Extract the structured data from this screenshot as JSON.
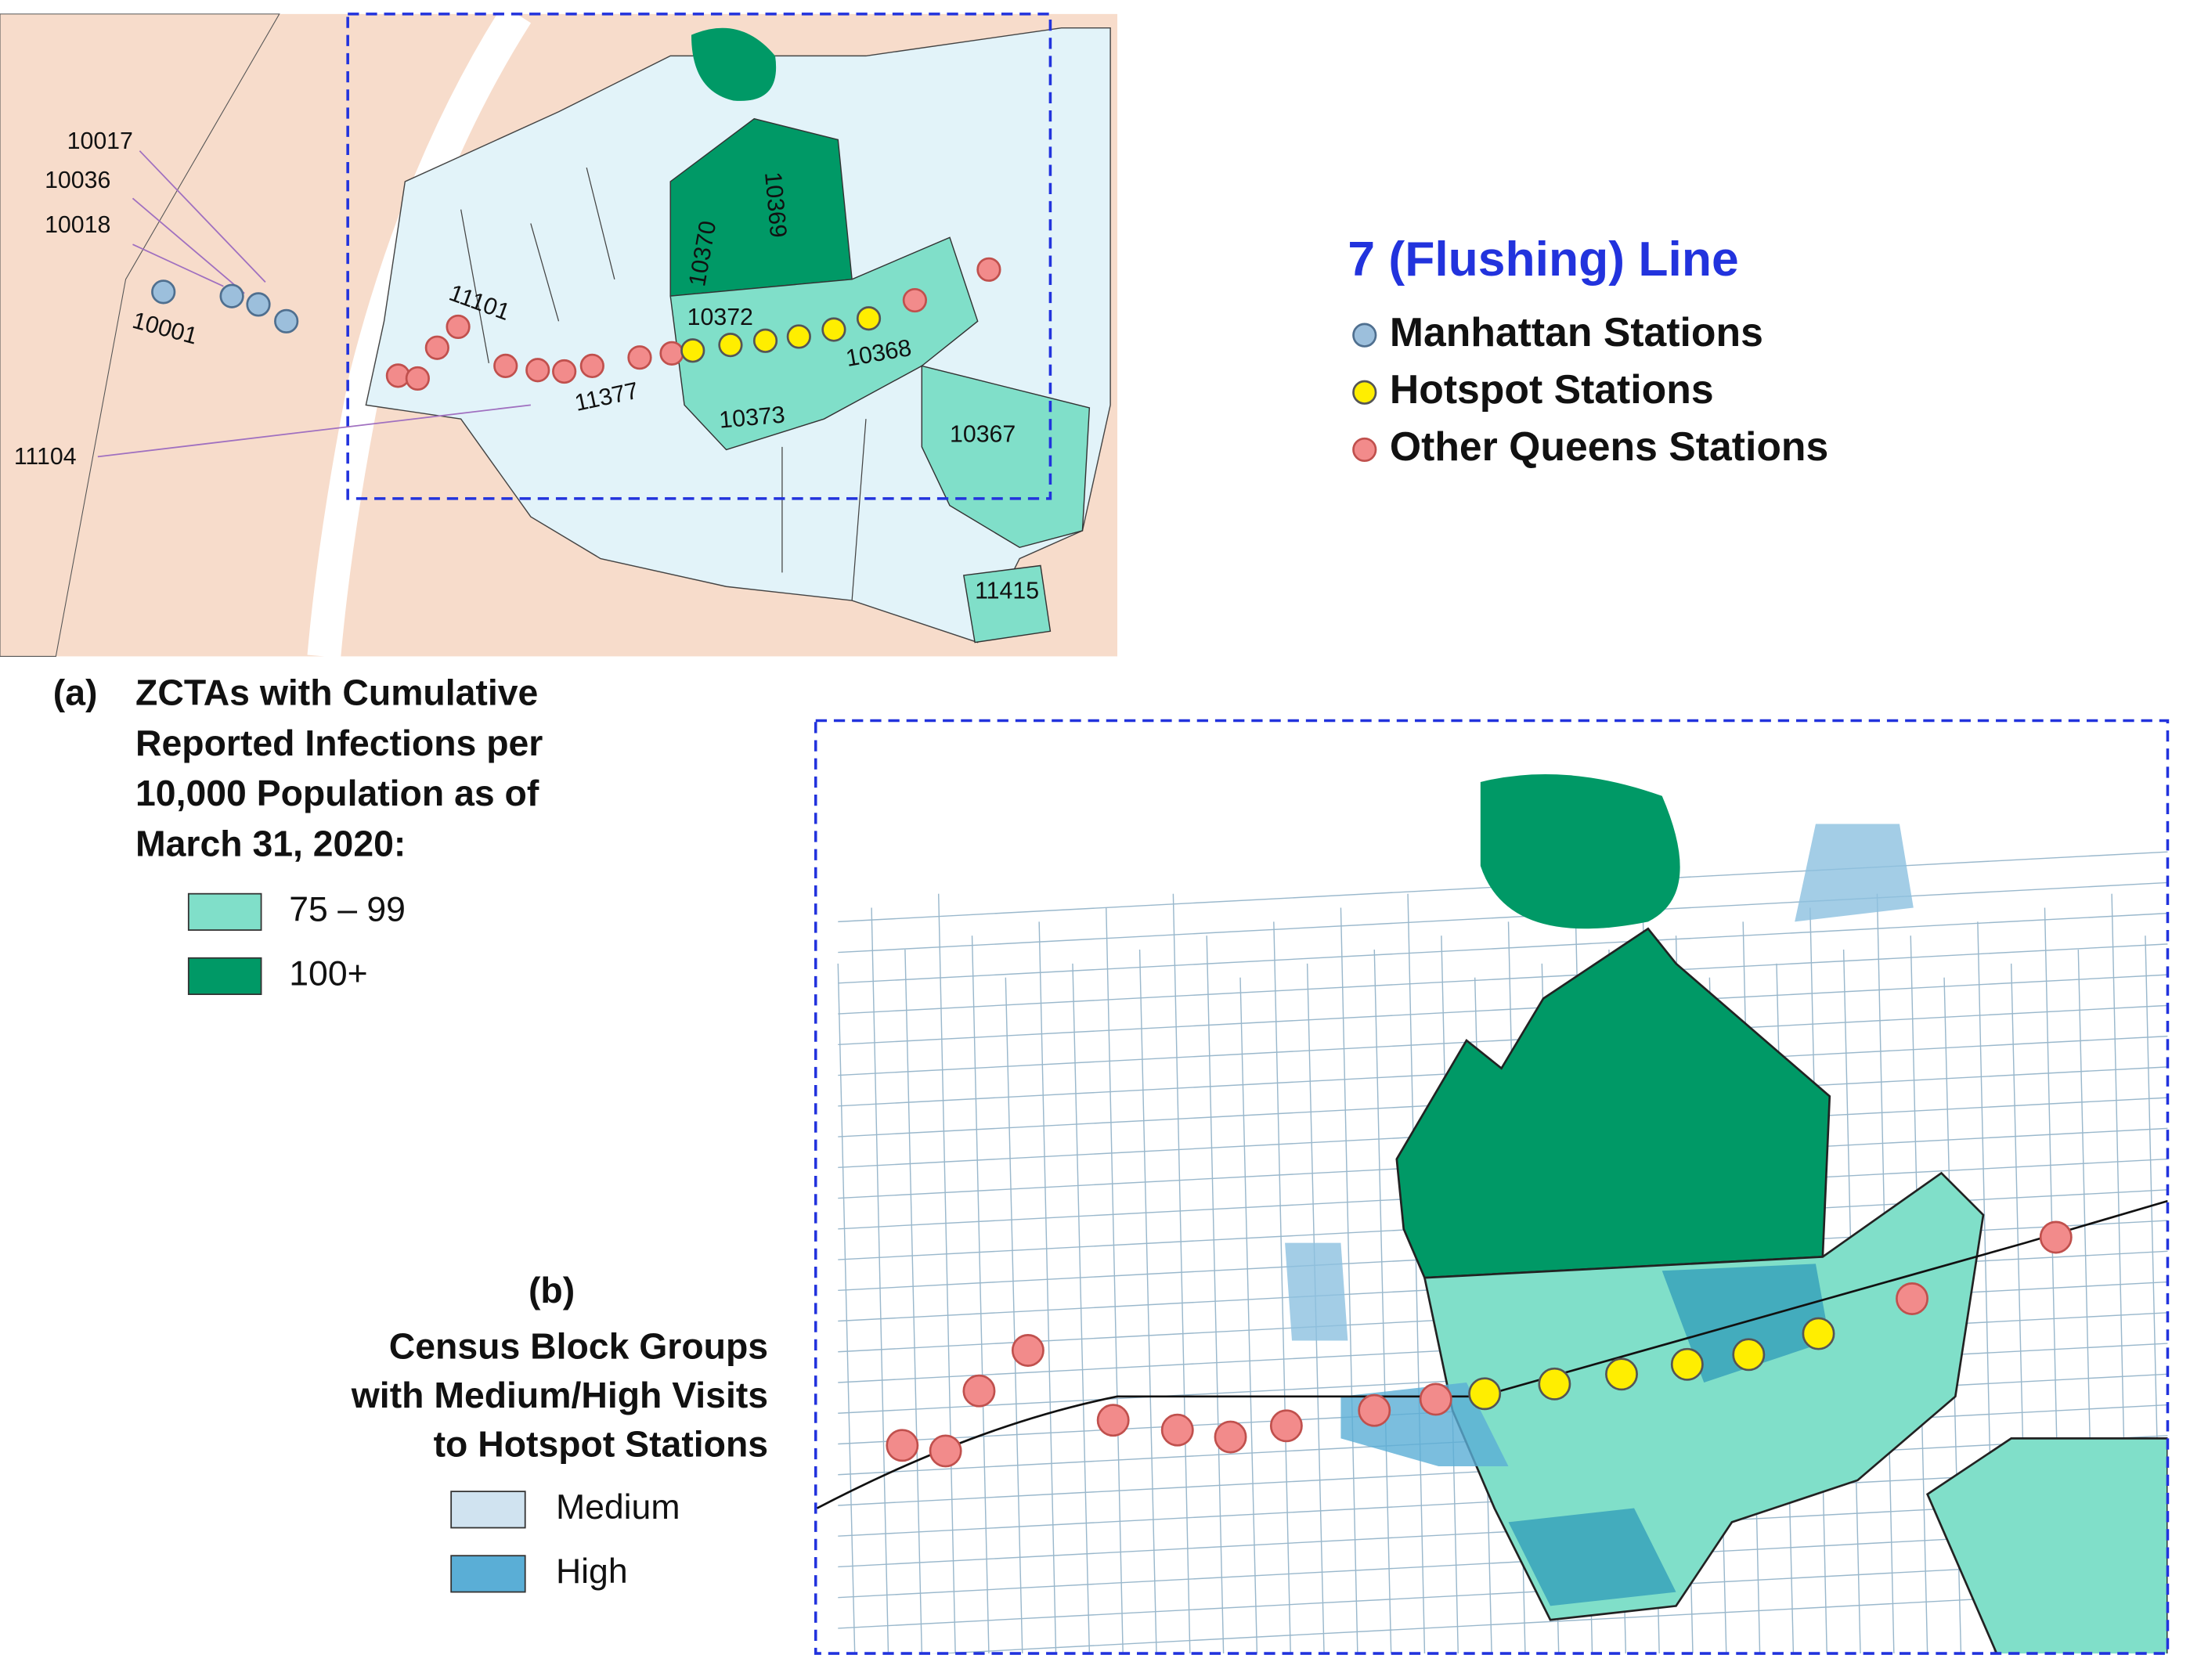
{
  "map_a": {
    "zip_labels": [
      "10017",
      "10036",
      "10018",
      "10001",
      "11104",
      "11101",
      "11377",
      "10370",
      "10369",
      "10372",
      "10368",
      "10373",
      "10367",
      "11415"
    ]
  },
  "line_legend": {
    "title": "7 (Flushing) Line",
    "items": [
      "Manhattan Stations",
      "Hotspot Stations",
      "Other Queens Stations"
    ]
  },
  "legend_a": {
    "tag": "(a)",
    "title_lines": [
      "ZCTAs with Cumulative",
      "Reported Infections per",
      "10,000 Population as of",
      "March 31, 2020:"
    ],
    "items": [
      "75 – 99",
      "100+"
    ]
  },
  "legend_b": {
    "tag": "(b)",
    "title_lines": [
      "Census Block Groups",
      "with Medium/High Visits",
      "to Hotspot Stations"
    ],
    "items": [
      "Medium",
      "High"
    ]
  }
}
